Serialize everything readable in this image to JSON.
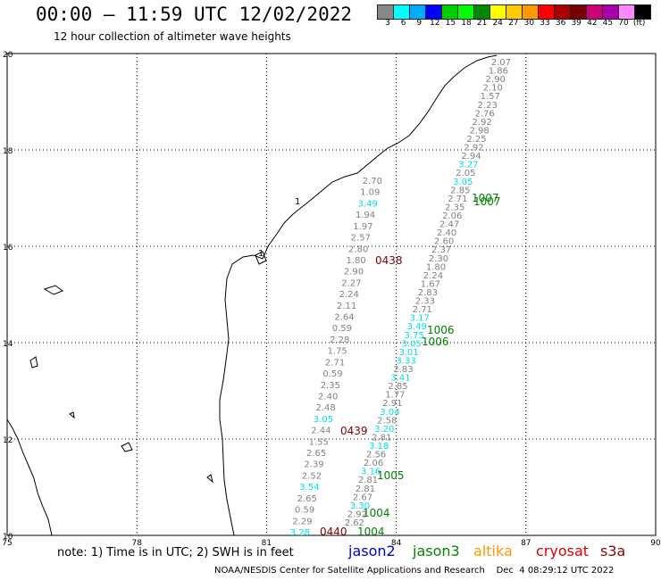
{
  "header": {
    "title": "00:00 – 11:59 UTC 12/02/2022",
    "subtitle": "12 hour collection of altimeter wave heights"
  },
  "legend": {
    "colors": [
      "#888888",
      "#00ffff",
      "#00aaff",
      "#0000ff",
      "#00cc00",
      "#00ff00",
      "#008800",
      "#ffff00",
      "#ffcc00",
      "#ff9900",
      "#ff0000",
      "#aa0000",
      "#770000",
      "#cc0077",
      "#aa00aa",
      "#ff88ff",
      "#000000"
    ],
    "labels": [
      "3",
      "6",
      "9",
      "12",
      "15",
      "18",
      "21",
      "24",
      "27",
      "30",
      "33",
      "36",
      "39",
      "42",
      "45",
      "70",
      "(ft)"
    ]
  },
  "map": {
    "lon_ticks": [
      "75",
      "78",
      "81",
      "84",
      "87",
      "90"
    ],
    "lat_ticks": [
      "20",
      "18",
      "16",
      "14",
      "12",
      "10"
    ],
    "lon_range": [
      75,
      90
    ],
    "lat_range": [
      10,
      20
    ],
    "colors": {
      "gray": "#808080",
      "cyan": "#00e0e8",
      "green": "#008000",
      "maroon": "#800000"
    },
    "swh_track_a": [
      [
        "2.07",
        "gray"
      ],
      [
        "1.86",
        "gray"
      ],
      [
        "2.90",
        "gray"
      ],
      [
        "2.10",
        "gray"
      ],
      [
        "1.57",
        "gray"
      ],
      [
        "2.23",
        "gray"
      ],
      [
        "2.76",
        "gray"
      ],
      [
        "2.92",
        "gray"
      ],
      [
        "2.98",
        "gray"
      ],
      [
        "2.25",
        "gray"
      ],
      [
        "2.92",
        "gray"
      ],
      [
        "2.94",
        "gray"
      ],
      [
        "3.27",
        "cyan"
      ],
      [
        "2.05",
        "gray"
      ],
      [
        "3.05",
        "cyan"
      ],
      [
        "2.85",
        "gray"
      ],
      [
        "2.71",
        "gray"
      ],
      [
        "2.35",
        "gray"
      ],
      [
        "2.06",
        "gray"
      ],
      [
        "2.47",
        "gray"
      ],
      [
        "2.40",
        "gray"
      ],
      [
        "2.60",
        "gray"
      ],
      [
        "2.37",
        "gray"
      ],
      [
        "2.30",
        "gray"
      ],
      [
        "1.80",
        "gray"
      ],
      [
        "2.24",
        "gray"
      ],
      [
        "1.67",
        "gray"
      ],
      [
        "2.83",
        "gray"
      ],
      [
        "2.33",
        "gray"
      ],
      [
        "2.71",
        "gray"
      ],
      [
        "3.17",
        "cyan"
      ],
      [
        "3.49",
        "cyan"
      ],
      [
        "3.75",
        "cyan"
      ],
      [
        "3.05",
        "cyan"
      ],
      [
        "3.01",
        "cyan"
      ],
      [
        "3.33",
        "cyan"
      ],
      [
        "2.83",
        "gray"
      ],
      [
        "3.41",
        "cyan"
      ],
      [
        "2.85",
        "gray"
      ],
      [
        "1.77",
        "gray"
      ],
      [
        "2.91",
        "gray"
      ],
      [
        "3.04",
        "cyan"
      ],
      [
        "2.58",
        "gray"
      ],
      [
        "3.20",
        "cyan"
      ],
      [
        "2.81",
        "gray"
      ],
      [
        "3.18",
        "cyan"
      ],
      [
        "2.56",
        "gray"
      ],
      [
        "2.06",
        "gray"
      ],
      [
        "3.16",
        "cyan"
      ],
      [
        "2.81",
        "gray"
      ],
      [
        "2.81",
        "gray"
      ],
      [
        "2.67",
        "gray"
      ],
      [
        "3.30",
        "cyan"
      ],
      [
        "2.92",
        "gray"
      ],
      [
        "2.62",
        "gray"
      ]
    ],
    "swh_track_b": [
      [
        "2.70",
        "gray"
      ],
      [
        "1.09",
        "gray"
      ],
      [
        "3.49",
        "cyan"
      ],
      [
        "1.94",
        "gray"
      ],
      [
        "1.97",
        "gray"
      ],
      [
        "2.57",
        "gray"
      ],
      [
        "2.80",
        "gray"
      ],
      [
        "1.80",
        "gray"
      ],
      [
        "2.90",
        "gray"
      ],
      [
        "2.27",
        "gray"
      ],
      [
        "2.24",
        "gray"
      ],
      [
        "2.11",
        "gray"
      ],
      [
        "2.64",
        "gray"
      ],
      [
        "0.59",
        "gray"
      ],
      [
        "2.28",
        "gray"
      ],
      [
        "1.75",
        "gray"
      ],
      [
        "2.71",
        "gray"
      ],
      [
        "0.59",
        "gray"
      ],
      [
        "2.35",
        "gray"
      ],
      [
        "2.40",
        "gray"
      ],
      [
        "2.48",
        "gray"
      ],
      [
        "3.05",
        "cyan"
      ],
      [
        "2.44",
        "gray"
      ],
      [
        "1.55",
        "gray"
      ],
      [
        "2.65",
        "gray"
      ],
      [
        "2.39",
        "gray"
      ],
      [
        "2.52",
        "gray"
      ],
      [
        "3.54",
        "cyan"
      ],
      [
        "2.65",
        "gray"
      ],
      [
        "0.59",
        "gray"
      ],
      [
        "2.29",
        "gray"
      ],
      [
        "3.28",
        "cyan"
      ]
    ],
    "pass_labels": [
      "1007",
      "1007",
      "1006",
      "1006",
      "1005",
      "1004",
      "1004",
      "0438",
      "0439",
      "0440"
    ],
    "place_labels": [
      "1",
      "1"
    ]
  },
  "footer": {
    "note": "note: 1) Time is in UTC; 2) SWH is in feet",
    "satellites": [
      {
        "name": "jason2",
        "color": "#0000cc"
      },
      {
        "name": "jason3",
        "color": "#008800"
      },
      {
        "name": "altika",
        "color": "#ff9900"
      },
      {
        "name": "cryosat",
        "color": "#dd0000"
      },
      {
        "name": "s3a",
        "color": "#880000"
      }
    ],
    "credit": "NOAA/NESDIS Center for Satellite Applications and Research    Dec  4 08:29:12 UTC 2022"
  }
}
